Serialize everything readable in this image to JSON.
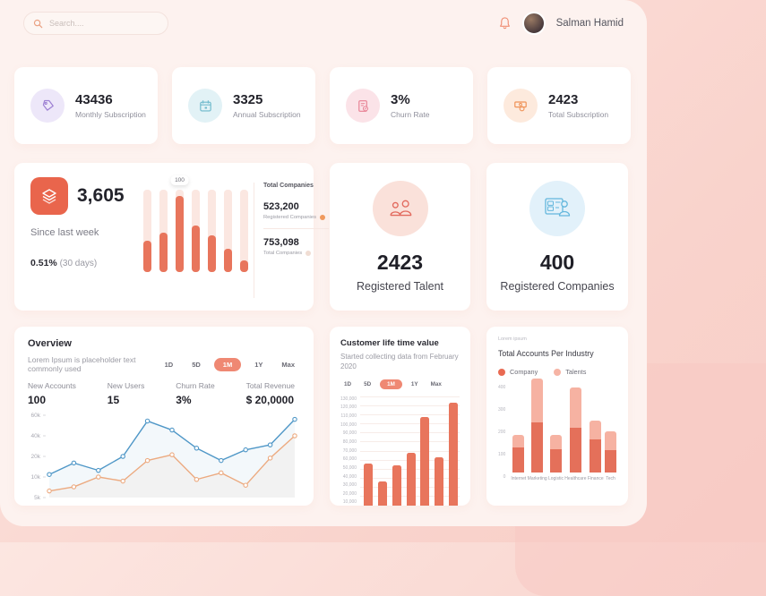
{
  "header": {
    "search_placeholder": "Search....",
    "user_name": "Salman Hamid"
  },
  "stat_cards": [
    {
      "value": "43436",
      "label": "Monthly Subscription",
      "circle": "#ede7f9",
      "icon_color": "#9d80d3",
      "icon": "tag-icon"
    },
    {
      "value": "3325",
      "label": "Annual Subscription",
      "circle": "#e2f2f6",
      "icon_color": "#6cb8cb",
      "icon": "calendar-icon"
    },
    {
      "value": "3%",
      "label": "Churn Rate",
      "circle": "#fbe3e8",
      "icon_color": "#e77f92",
      "icon": "churn-doc-icon"
    },
    {
      "value": "2423",
      "label": "Total Subscription",
      "circle": "#fdeadd",
      "icon_color": "#ef9257",
      "icon": "cash-icon"
    }
  ],
  "week_card": {
    "value": "3,605",
    "subtitle": "Since last week",
    "percent": "0.51%",
    "percent_note": "(30 days)",
    "legend_title": "Total Companies",
    "legend": [
      {
        "value": "523,200",
        "label": "Registered Companies",
        "dot": "#f09a5e"
      },
      {
        "value": "753,098",
        "label": "Total Companies",
        "dot": "#f0ddd3"
      }
    ]
  },
  "talent_card": {
    "value": "2423",
    "label": "Registered Talent"
  },
  "companies_card": {
    "value": "400",
    "label": "Registered Companies"
  },
  "overview": {
    "title": "Overview",
    "subtitle": "Lorem Ipsum is placeholder text commonly used",
    "tabs": [
      "1D",
      "5D",
      "1M",
      "1Y",
      "Max"
    ],
    "active_tab": "1M",
    "stats": [
      {
        "label": "New Accounts",
        "value": "100"
      },
      {
        "label": "New Users",
        "value": "15"
      },
      {
        "label": "Churn Rate",
        "value": "3%"
      },
      {
        "label": "Total Revenue",
        "value": "$ 20,0000"
      }
    ]
  },
  "clv": {
    "title": "Customer life time value",
    "subtitle": "Started collecting data from February 2020",
    "tabs": [
      "1D",
      "5D",
      "1M",
      "1Y",
      "Max"
    ],
    "active_tab": "1M"
  },
  "industry": {
    "micro_label": "Lorem ipsum",
    "title": "Total Accounts Per Industry",
    "legend": [
      {
        "label": "Company",
        "color": "#e96a52"
      },
      {
        "label": "Talents",
        "color": "#f6b4a5"
      }
    ]
  },
  "chart_data": [
    {
      "id": "weekly-bars",
      "type": "bar",
      "values": [
        38,
        48,
        92,
        57,
        45,
        28,
        14
      ],
      "ylim": [
        0,
        100
      ],
      "annotation": {
        "index": 2,
        "text": "100"
      },
      "bar_color": "#e8755c",
      "track_color": "#fbe7e1"
    },
    {
      "id": "overview-line",
      "type": "line",
      "yticks": [
        "60k",
        "40k",
        "20k",
        "10k",
        "5k"
      ],
      "ylim": [
        0,
        100
      ],
      "series": [
        {
          "name": "New Accounts",
          "color": "#4f97c7",
          "values": [
            28,
            42,
            33,
            50,
            93,
            82,
            60,
            45,
            58,
            64,
            95
          ]
        },
        {
          "name": "New Users",
          "color": "#ecaa80",
          "values": [
            8,
            13,
            25,
            20,
            45,
            52,
            22,
            30,
            15,
            48,
            75
          ]
        }
      ],
      "grid": false,
      "legend_position": "none"
    },
    {
      "id": "clv-bars",
      "type": "bar",
      "yticks": [
        "130,000",
        "120,000",
        "110,000",
        "100,000",
        "90,000",
        "80,000",
        "70,000",
        "60,000",
        "50,000",
        "40,000",
        "30,000",
        "20,000",
        "10,000"
      ],
      "values": [
        50000,
        28000,
        48000,
        62000,
        105000,
        57000,
        122000
      ],
      "ylim": [
        0,
        130000
      ],
      "bar_color": "#e8755c",
      "grid": true
    },
    {
      "id": "industry-stacked",
      "type": "bar",
      "stacked": true,
      "categories": [
        "Internet",
        "Marketing",
        "Logistic",
        "Healthcare",
        "Finance",
        "Tech"
      ],
      "yticks": [
        "400",
        "300",
        "200",
        "100",
        "0"
      ],
      "ylim": [
        0,
        400
      ],
      "series": [
        {
          "name": "Company",
          "color": "#e4705a",
          "values": [
            105,
            210,
            100,
            190,
            140,
            95
          ]
        },
        {
          "name": "Talents",
          "color": "#f6b2a2",
          "values": [
            55,
            185,
            60,
            170,
            80,
            80
          ]
        }
      ],
      "grid": true,
      "legend_position": "top"
    }
  ]
}
